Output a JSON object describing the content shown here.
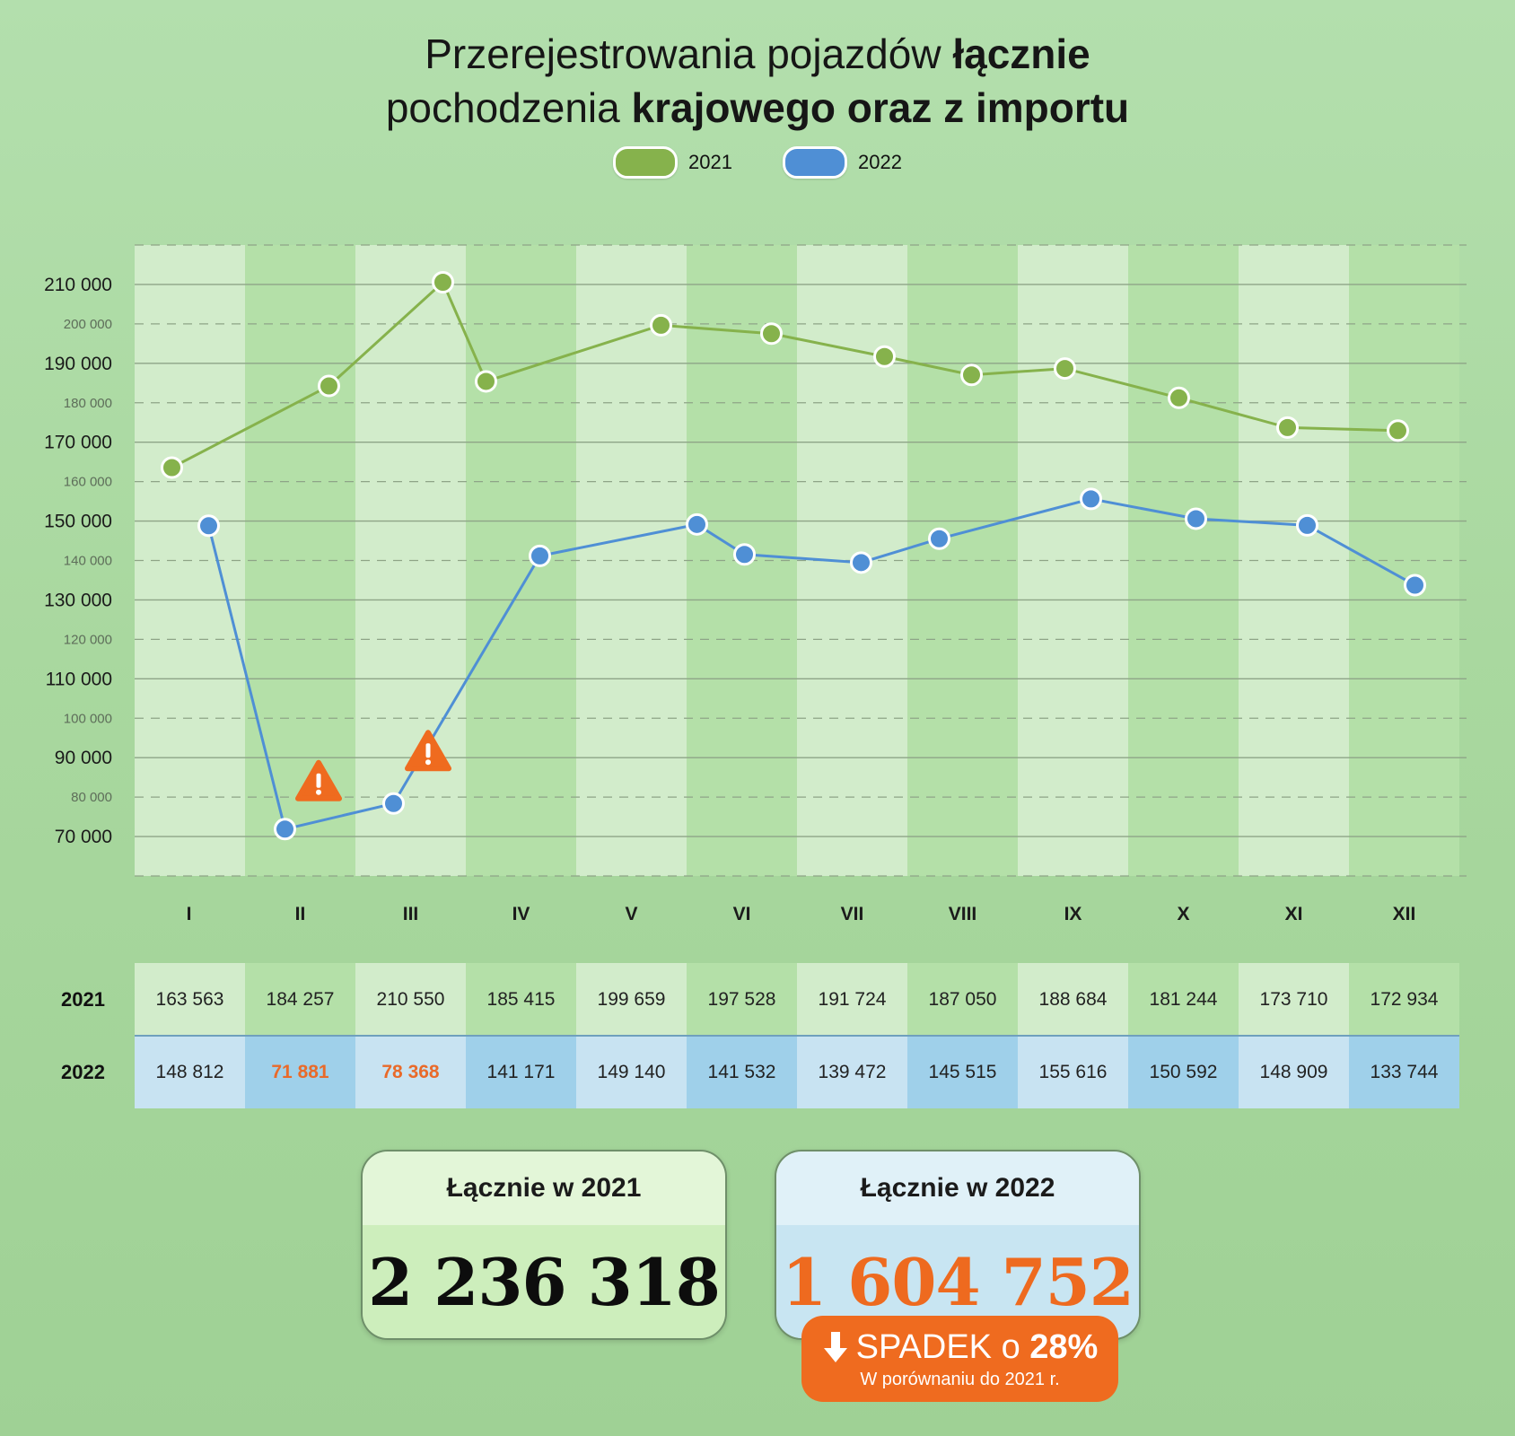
{
  "title": {
    "line1_regular": "Przerejestrowania pojazdów ",
    "line1_bold": "łącznie",
    "line2_regular": "pochodzenia ",
    "line2_bold": "krajowego oraz z importu"
  },
  "legend": [
    {
      "label": "2021",
      "color": "#86b24c"
    },
    {
      "label": "2022",
      "color": "#4f8fd5"
    }
  ],
  "chart_data": {
    "type": "line",
    "categories": [
      "I",
      "II",
      "III",
      "IV",
      "V",
      "VI",
      "VII",
      "VIII",
      "IX",
      "X",
      "XI",
      "XII"
    ],
    "series": [
      {
        "name": "2021",
        "color": "#86b24c",
        "values": [
          163563,
          184257,
          210550,
          185415,
          199659,
          197528,
          191724,
          187050,
          188684,
          181244,
          173710,
          172934
        ]
      },
      {
        "name": "2022",
        "color": "#4f8fd5",
        "values": [
          148812,
          71881,
          78368,
          141171,
          149140,
          141532,
          139472,
          145515,
          155616,
          150592,
          148909,
          133744
        ]
      }
    ],
    "ylim": [
      60000,
      220000
    ],
    "y_ticks_major": [
      "210 000",
      "190 000",
      "170 000",
      "150 000",
      "130 000",
      "110 000",
      "90 000",
      "70 000"
    ],
    "y_ticks_minor": [
      "200 000",
      "180 000",
      "160 000",
      "140 000",
      "120 000",
      "100 000",
      "80 000"
    ],
    "grid": true,
    "legend_position": "top-center",
    "warnings": [
      {
        "series": "2022",
        "category": "II"
      },
      {
        "series": "2022",
        "category": "III"
      }
    ]
  },
  "table": {
    "rows": [
      {
        "label": "2021",
        "values": [
          "163 563",
          "184 257",
          "210 550",
          "185 415",
          "199 659",
          "197 528",
          "191 724",
          "187 050",
          "188 684",
          "181 244",
          "173 710",
          "172 934"
        ]
      },
      {
        "label": "2022",
        "values": [
          "148 812",
          "71 881",
          "78 368",
          "141 171",
          "149 140",
          "141 532",
          "139 472",
          "145 515",
          "155 616",
          "150 592",
          "148 909",
          "133 744"
        ],
        "highlight": [
          1,
          2
        ]
      }
    ]
  },
  "totals": {
    "y2021": {
      "label": "Łącznie w 2021",
      "value": "2 236 318"
    },
    "y2022": {
      "label": "Łącznie w 2022",
      "value": "1 604 752"
    }
  },
  "badge": {
    "prefix": "SPADEK o ",
    "percent": "28%",
    "sub": "W porównaniu do 2021 r."
  },
  "colors": {
    "accent_orange": "#ef6b1f",
    "green_line": "#86b24c",
    "blue_line": "#4f8fd5"
  }
}
